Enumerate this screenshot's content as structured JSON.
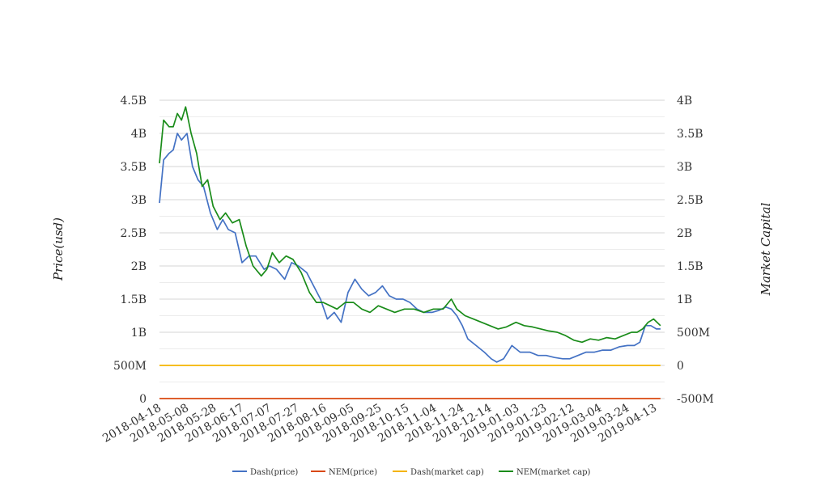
{
  "chart_data": {
    "type": "line",
    "title": "",
    "y_left_label": "Price(usd)",
    "y_right_label": "Market Capital",
    "y_left_ticks": [
      "0",
      "500M",
      "1B",
      "1.5B",
      "2B",
      "2.5B",
      "3B",
      "3.5B",
      "4B",
      "4.5B"
    ],
    "y_right_ticks": [
      "-500M",
      "0",
      "500M",
      "1B",
      "1.5B",
      "2B",
      "2.5B",
      "3B",
      "3.5B",
      "4B"
    ],
    "y_left_range": [
      0,
      4500000000
    ],
    "y_right_range": [
      -500000000,
      4000000000
    ],
    "x_tick_labels": [
      "2018-04-18",
      "2018-05-08",
      "2018-05-28",
      "2018-06-17",
      "2018-07-07",
      "2018-07-27",
      "2018-08-16",
      "2018-09-05",
      "2018-09-25",
      "2018-10-15",
      "2018-11-04",
      "2018-11-24",
      "2018-12-14",
      "2019-01-03",
      "2019-01-23",
      "2019-02-12",
      "2019-03-04",
      "2019-03-24",
      "2019-04-13"
    ],
    "x_range": [
      "2018-04-18",
      "2019-04-20"
    ],
    "grid": true,
    "legend_position": "bottom",
    "series": [
      {
        "name": "Dash(price)",
        "color": "#4472c4",
        "axis": "left",
        "x": [
          "2018-04-18",
          "2018-04-21",
          "2018-04-25",
          "2018-04-28",
          "2018-05-01",
          "2018-05-04",
          "2018-05-08",
          "2018-05-12",
          "2018-05-16",
          "2018-05-20",
          "2018-05-25",
          "2018-05-30",
          "2018-06-03",
          "2018-06-07",
          "2018-06-12",
          "2018-06-17",
          "2018-06-22",
          "2018-06-27",
          "2018-07-03",
          "2018-07-07",
          "2018-07-12",
          "2018-07-18",
          "2018-07-23",
          "2018-07-28",
          "2018-08-03",
          "2018-08-08",
          "2018-08-13",
          "2018-08-18",
          "2018-08-23",
          "2018-08-28",
          "2018-09-02",
          "2018-09-07",
          "2018-09-12",
          "2018-09-17",
          "2018-09-22",
          "2018-09-27",
          "2018-10-02",
          "2018-10-07",
          "2018-10-12",
          "2018-10-17",
          "2018-10-22",
          "2018-10-27",
          "2018-11-02",
          "2018-11-07",
          "2018-11-12",
          "2018-11-16",
          "2018-11-20",
          "2018-11-24",
          "2018-11-28",
          "2018-12-04",
          "2018-12-10",
          "2018-12-15",
          "2018-12-19",
          "2018-12-24",
          "2018-12-30",
          "2019-01-05",
          "2019-01-12",
          "2019-01-18",
          "2019-01-24",
          "2019-01-30",
          "2019-02-05",
          "2019-02-10",
          "2019-02-16",
          "2019-02-22",
          "2019-02-28",
          "2019-03-06",
          "2019-03-12",
          "2019-03-18",
          "2019-03-24",
          "2019-03-29",
          "2019-04-02",
          "2019-04-06",
          "2019-04-10",
          "2019-04-14",
          "2019-04-17"
        ],
        "values": [
          2950000000,
          3600000000,
          3700000000,
          3750000000,
          4000000000,
          3900000000,
          4000000000,
          3500000000,
          3300000000,
          3200000000,
          2800000000,
          2550000000,
          2700000000,
          2550000000,
          2500000000,
          2050000000,
          2150000000,
          2150000000,
          1950000000,
          2000000000,
          1950000000,
          1800000000,
          2050000000,
          2000000000,
          1900000000,
          1700000000,
          1500000000,
          1200000000,
          1300000000,
          1150000000,
          1600000000,
          1800000000,
          1650000000,
          1550000000,
          1600000000,
          1700000000,
          1550000000,
          1500000000,
          1500000000,
          1450000000,
          1350000000,
          1300000000,
          1300000000,
          1330000000,
          1380000000,
          1350000000,
          1250000000,
          1100000000,
          900000000,
          800000000,
          700000000,
          600000000,
          550000000,
          600000000,
          800000000,
          700000000,
          700000000,
          650000000,
          650000000,
          620000000,
          600000000,
          600000000,
          650000000,
          700000000,
          700000000,
          730000000,
          730000000,
          780000000,
          800000000,
          800000000,
          850000000,
          1100000000,
          1100000000,
          1050000000,
          1050000000
        ]
      },
      {
        "name": "NEM(price)",
        "color": "#d9480f",
        "axis": "left",
        "x": [
          "2018-04-18",
          "2019-04-17"
        ],
        "values": [
          0,
          0
        ]
      },
      {
        "name": "Dash(market cap)",
        "color": "#f4b400",
        "axis": "right",
        "x": [
          "2018-04-18",
          "2019-04-17"
        ],
        "values": [
          0,
          0
        ]
      },
      {
        "name": "NEM(market cap)",
        "color": "#1a8c1a",
        "axis": "right",
        "x": [
          "2018-04-18",
          "2018-04-21",
          "2018-04-25",
          "2018-04-28",
          "2018-05-01",
          "2018-05-04",
          "2018-05-07",
          "2018-05-11",
          "2018-05-15",
          "2018-05-19",
          "2018-05-23",
          "2018-05-27",
          "2018-06-01",
          "2018-06-05",
          "2018-06-10",
          "2018-06-15",
          "2018-06-20",
          "2018-06-25",
          "2018-07-01",
          "2018-07-05",
          "2018-07-09",
          "2018-07-14",
          "2018-07-19",
          "2018-07-24",
          "2018-07-30",
          "2018-08-05",
          "2018-08-10",
          "2018-08-15",
          "2018-08-20",
          "2018-08-25",
          "2018-08-31",
          "2018-09-06",
          "2018-09-12",
          "2018-09-18",
          "2018-09-24",
          "2018-09-30",
          "2018-10-06",
          "2018-10-13",
          "2018-10-20",
          "2018-10-27",
          "2018-11-03",
          "2018-11-10",
          "2018-11-16",
          "2018-11-20",
          "2018-11-26",
          "2018-12-02",
          "2018-12-08",
          "2018-12-14",
          "2018-12-20",
          "2018-12-26",
          "2019-01-02",
          "2019-01-08",
          "2019-01-14",
          "2019-01-20",
          "2019-01-26",
          "2019-02-01",
          "2019-02-07",
          "2019-02-13",
          "2019-02-19",
          "2019-02-25",
          "2019-03-03",
          "2019-03-09",
          "2019-03-15",
          "2019-03-21",
          "2019-03-27",
          "2019-03-31",
          "2019-04-04",
          "2019-04-08",
          "2019-04-12",
          "2019-04-17"
        ],
        "values": [
          3050000000,
          3700000000,
          3600000000,
          3600000000,
          3800000000,
          3700000000,
          3900000000,
          3500000000,
          3200000000,
          2700000000,
          2800000000,
          2400000000,
          2200000000,
          2300000000,
          2150000000,
          2200000000,
          1800000000,
          1500000000,
          1350000000,
          1450000000,
          1700000000,
          1550000000,
          1650000000,
          1600000000,
          1400000000,
          1100000000,
          950000000,
          950000000,
          900000000,
          850000000,
          950000000,
          950000000,
          850000000,
          800000000,
          900000000,
          850000000,
          800000000,
          850000000,
          850000000,
          800000000,
          850000000,
          850000000,
          1000000000,
          850000000,
          750000000,
          700000000,
          650000000,
          600000000,
          550000000,
          580000000,
          650000000,
          600000000,
          580000000,
          550000000,
          520000000,
          500000000,
          450000000,
          380000000,
          350000000,
          400000000,
          380000000,
          420000000,
          400000000,
          450000000,
          500000000,
          500000000,
          550000000,
          650000000,
          700000000,
          600000000
        ]
      }
    ]
  }
}
